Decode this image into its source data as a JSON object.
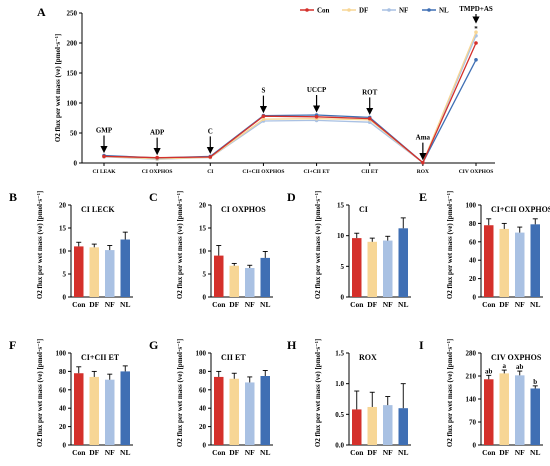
{
  "colors": {
    "Con": "#d4302b",
    "DF": "#f7d695",
    "NF": "#a9c1e3",
    "NL": "#3f6fb4"
  },
  "chart_data": [
    {
      "id": "A",
      "type": "line",
      "ylabel": "O2 flux per wet mass (ve) [pmol·s⁻¹]",
      "ylim": [
        0,
        250
      ],
      "yticks": [
        "0",
        "50",
        "100",
        "150",
        "200",
        "250"
      ],
      "categories": [
        "CI LEAK",
        "CI OXPHOS",
        "CI",
        "CI+CII OXPHOS",
        "CI+CII ET",
        "CII ET",
        "ROX",
        "CIV OXPHOS"
      ],
      "annotations": [
        "GMP",
        "ADP",
        "C",
        "S",
        "UCCP",
        "ROT",
        "Ama",
        "TMPD+AS"
      ],
      "significance": "*",
      "legend_position": "top",
      "series": [
        {
          "name": "Con",
          "values": [
            11,
            9,
            10,
            78,
            77,
            74,
            0.6,
            200
          ]
        },
        {
          "name": "DF",
          "values": [
            10.8,
            7,
            9.5,
            73,
            74,
            72,
            0.6,
            218
          ]
        },
        {
          "name": "NF",
          "values": [
            10.3,
            6.3,
            9.2,
            70,
            71,
            68,
            0.6,
            212
          ]
        },
        {
          "name": "NL",
          "values": [
            12.5,
            8.5,
            11,
            79,
            80,
            76,
            0.6,
            172
          ]
        }
      ]
    },
    {
      "id": "B",
      "type": "bar",
      "title": "CI LECK",
      "ylabel": "O2 flux per wet mass (ve) [pmol·s⁻¹]",
      "ylim": [
        0,
        20
      ],
      "yticks": [
        "0",
        "5",
        "10",
        "15",
        "20"
      ],
      "categories": [
        "Con",
        "DF",
        "NF",
        "NL"
      ],
      "values": [
        11,
        10.8,
        10.2,
        12.5
      ],
      "errors": [
        0.9,
        0.7,
        1.0,
        1.6
      ],
      "labels": [
        "",
        "",
        "",
        ""
      ]
    },
    {
      "id": "C",
      "type": "bar",
      "title": "CI OXPHOS",
      "ylabel": "O2 flux per wet mass (ve) [pmol·s⁻¹]",
      "ylim": [
        0,
        20
      ],
      "yticks": [
        "0",
        "5",
        "10",
        "15",
        "20"
      ],
      "categories": [
        "Con",
        "DF",
        "NF",
        "NL"
      ],
      "values": [
        9,
        6.8,
        6.3,
        8.5
      ],
      "errors": [
        2.2,
        0.5,
        0.6,
        1.4
      ],
      "labels": [
        "",
        "",
        "",
        ""
      ]
    },
    {
      "id": "D",
      "type": "bar",
      "title": "CI",
      "ylabel": "O2 flux per wet mass (ve) [pmol·s⁻¹]",
      "ylim": [
        0,
        15
      ],
      "yticks": [
        "0",
        "5",
        "10",
        "15"
      ],
      "categories": [
        "Con",
        "DF",
        "NF",
        "NL"
      ],
      "values": [
        9.6,
        9.0,
        9.2,
        11.2
      ],
      "errors": [
        0.8,
        0.6,
        0.7,
        1.7
      ],
      "labels": [
        "",
        "",
        "",
        ""
      ]
    },
    {
      "id": "E",
      "type": "bar",
      "title": "CI+CII OXPHOS",
      "ylabel": "O2 flux per wet mass (ve) [pmol·s⁻¹]",
      "ylim": [
        0,
        100
      ],
      "yticks": [
        "0",
        "20",
        "40",
        "60",
        "80",
        "100"
      ],
      "categories": [
        "Con",
        "DF",
        "NF",
        "NL"
      ],
      "values": [
        78,
        74,
        70,
        79
      ],
      "errors": [
        7,
        6,
        6,
        6
      ],
      "labels": [
        "",
        "",
        "",
        ""
      ]
    },
    {
      "id": "F",
      "type": "bar",
      "title": "CI+CII ET",
      "ylabel": "O2 flux per wet mass (ve) [pmol·s⁻¹]",
      "ylim": [
        0,
        100
      ],
      "yticks": [
        "0",
        "20",
        "40",
        "60",
        "80",
        "100"
      ],
      "categories": [
        "Con",
        "DF",
        "NF",
        "NL"
      ],
      "values": [
        78,
        74,
        71,
        80
      ],
      "errors": [
        7,
        6,
        6,
        6
      ],
      "labels": [
        "",
        "",
        "",
        ""
      ]
    },
    {
      "id": "G",
      "type": "bar",
      "title": "CII ET",
      "ylabel": "O2 flux per wet mass (ve) [pmol·s⁻¹]",
      "ylim": [
        0,
        100
      ],
      "yticks": [
        "0",
        "20",
        "40",
        "60",
        "80",
        "100"
      ],
      "categories": [
        "Con",
        "DF",
        "NF",
        "NL"
      ],
      "values": [
        74,
        72,
        68,
        75
      ],
      "errors": [
        6,
        6,
        6,
        6
      ],
      "labels": [
        "",
        "",
        "",
        ""
      ]
    },
    {
      "id": "H",
      "type": "bar",
      "title": "ROX",
      "ylabel": "O2 flux per wet mass (ve) [pmol·s⁻¹]",
      "ylim": [
        0,
        1.5
      ],
      "yticks": [
        "0.0",
        "0.5",
        "1.0",
        "1.5"
      ],
      "categories": [
        "Con",
        "DF",
        "NF",
        "NL"
      ],
      "values": [
        0.58,
        0.62,
        0.65,
        0.6
      ],
      "errors": [
        0.3,
        0.24,
        0.14,
        0.4
      ],
      "labels": [
        "",
        "",
        "",
        ""
      ]
    },
    {
      "id": "I",
      "type": "bar",
      "title": "CIV OXPHOS",
      "ylabel": "O2 flux per wet mass (ve) [pmol·s⁻¹]",
      "ylim": [
        0,
        280
      ],
      "yticks": [
        "0",
        "70",
        "140",
        "210",
        "280"
      ],
      "categories": [
        "Con",
        "DF",
        "NF",
        "NL"
      ],
      "values": [
        200,
        218,
        212,
        172
      ],
      "errors": [
        12,
        10,
        13,
        8
      ],
      "labels": [
        "ab",
        "a",
        "ab",
        "b"
      ]
    }
  ]
}
